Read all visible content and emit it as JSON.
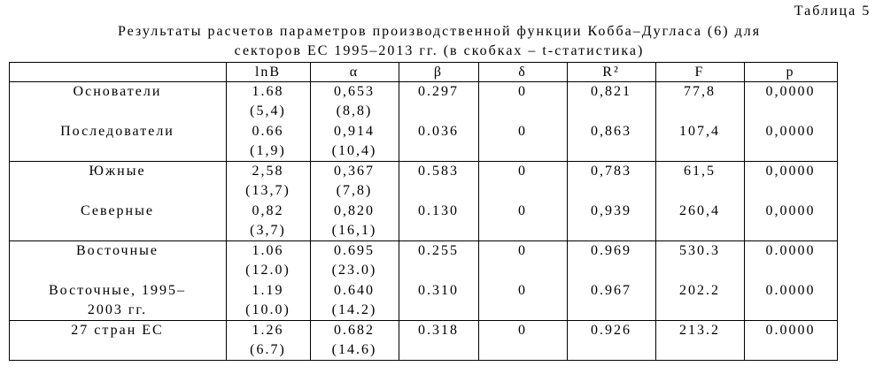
{
  "header": {
    "label": "Таблица 5"
  },
  "title": {
    "lines": [
      "Результаты расчетов параметров производственной функции Кобба–Дугласа (6) для",
      "секторов ЕС 1995–2013 гг. (в скобках – t-статистика)"
    ]
  },
  "table": {
    "columns": [
      "lnB",
      "α",
      "β",
      "δ",
      "R²",
      "F",
      "p"
    ],
    "groups": [
      {
        "rows": [
          {
            "label": [
              "Основатели"
            ],
            "values": [
              "1.68",
              "0,653",
              "0.297",
              "0",
              "0,821",
              "77,8",
              "0,0000"
            ],
            "t": [
              "(5,4)",
              "(8,8)"
            ]
          },
          {
            "label": [
              "Последователи"
            ],
            "values": [
              "0.66",
              "0,914",
              "0.036",
              "0",
              "0,863",
              "107,4",
              "0,0000"
            ],
            "t": [
              "(1,9)",
              "(10,4)"
            ]
          }
        ]
      },
      {
        "rows": [
          {
            "label": [
              "Южные"
            ],
            "values": [
              "2,58",
              "0,367",
              "0.583",
              "0",
              "0,783",
              "61,5",
              "0,0000"
            ],
            "t": [
              "(13,7)",
              "(7,8)"
            ]
          },
          {
            "label": [
              "Северные"
            ],
            "values": [
              "0,82",
              "0,820",
              "0.130",
              "0",
              "0,939",
              "260,4",
              "0,0000"
            ],
            "t": [
              "(3,7)",
              "(16,1)"
            ]
          }
        ]
      },
      {
        "rows": [
          {
            "label": [
              "Восточные"
            ],
            "values": [
              "1.06",
              "0.695",
              "0.255",
              "0",
              "0.969",
              "530.3",
              "0.0000"
            ],
            "t": [
              "(12.0)",
              "(23.0)"
            ]
          },
          {
            "label": [
              "Восточные, 1995–",
              "2003 гг."
            ],
            "values": [
              "1.19",
              "0.640",
              "0.310",
              "0",
              "0.967",
              "202.2",
              "0.0000"
            ],
            "t": [
              "(10.0)",
              "(14.2)"
            ]
          }
        ]
      },
      {
        "rows": [
          {
            "label": [
              "27 стран ЕС"
            ],
            "values": [
              "1.26",
              "0.682",
              "0.318",
              "0",
              "0.926",
              "213.2",
              "0.0000"
            ],
            "t": [
              "(6.7)",
              "(14.6)"
            ]
          }
        ]
      }
    ]
  }
}
